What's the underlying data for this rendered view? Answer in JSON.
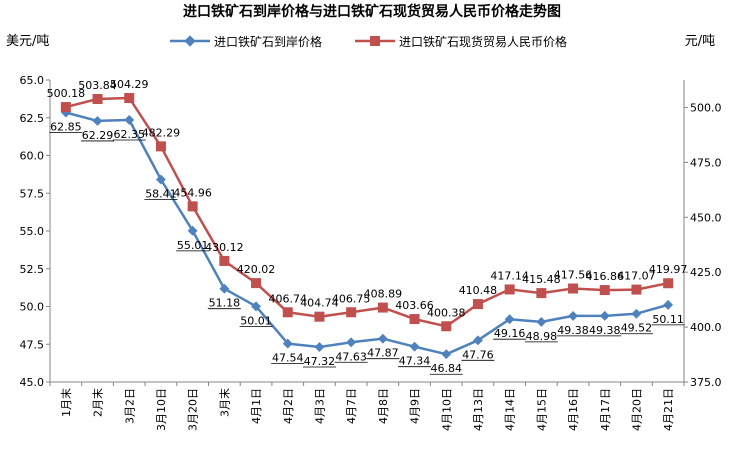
{
  "chart_data": {
    "type": "line",
    "title": "进口铁矿石到岸价格与进口铁矿石现货贸易人民币价格走势图",
    "ylabel_left": "美元/吨",
    "ylabel_right": "元/吨",
    "categories": [
      "1月末",
      "2月末",
      "3月2日",
      "3月10日",
      "3月20日",
      "3月末",
      "4月1日",
      "4月2日",
      "4月3日",
      "4月7日",
      "4月8日",
      "4月9日",
      "4月10日",
      "4月13日",
      "4月14日",
      "4月15日",
      "4月16日",
      "4月17日",
      "4月20日",
      "4月21日"
    ],
    "y_left": {
      "min": 45.0,
      "max": 65.0,
      "ticks": [
        "45.0",
        "47.5",
        "50.0",
        "52.5",
        "55.0",
        "57.5",
        "60.0",
        "62.5",
        "65.0"
      ]
    },
    "y_right": {
      "min": 375.0,
      "max": 512.5,
      "ticks": [
        "375.0",
        "400.0",
        "425.0",
        "450.0",
        "475.0",
        "500.0"
      ]
    },
    "grid": false,
    "legend_position": "top",
    "series": [
      {
        "name": "进口铁矿石到岸价格",
        "axis": "left",
        "color": "#4F81BD",
        "marker": "diamond",
        "values": [
          62.85,
          62.29,
          62.35,
          58.41,
          55.01,
          51.18,
          50.01,
          47.54,
          47.32,
          47.63,
          47.87,
          47.34,
          46.84,
          47.76,
          49.16,
          48.98,
          49.38,
          49.38,
          49.52,
          50.11
        ],
        "labels": [
          "62.85",
          "62.29",
          "62.35",
          "58.41",
          "55.01",
          "51.18",
          "50.01",
          "47.54",
          "47.32",
          "47.63",
          "47.87",
          "47.34",
          "46.84",
          "47.76",
          "49.16",
          "48.98",
          "49.38",
          "49.38",
          "49.52",
          "50.11"
        ]
      },
      {
        "name": "进口铁矿石现货贸易人民币价格",
        "axis": "right",
        "color": "#C0504D",
        "marker": "square",
        "values": [
          500.18,
          503.84,
          504.29,
          482.29,
          454.96,
          430.12,
          420.02,
          406.74,
          404.74,
          406.75,
          408.89,
          403.66,
          400.38,
          410.48,
          417.14,
          415.48,
          417.56,
          416.86,
          417.07,
          419.97
        ],
        "labels": [
          "500.18",
          "503.84",
          "504.29",
          "482.29",
          "454.96",
          "430.12",
          "420.02",
          "406.74",
          "404.74",
          "406.75",
          "408.89",
          "403.66",
          "400.38",
          "410.48",
          "417.14",
          "415.48",
          "417.56",
          "416.86",
          "417.07",
          "419.97"
        ]
      }
    ]
  }
}
